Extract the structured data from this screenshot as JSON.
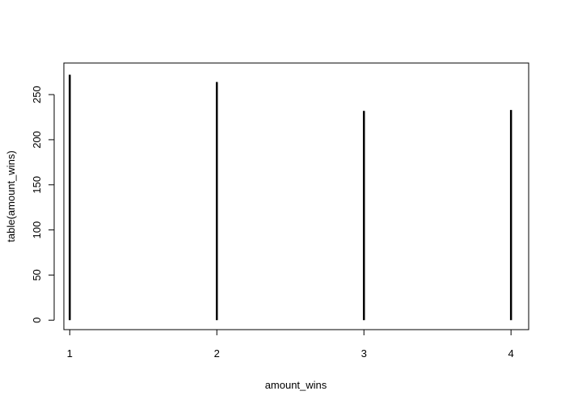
{
  "chart_data": {
    "type": "bar",
    "style": "histogram-lines",
    "categories": [
      "1",
      "2",
      "3",
      "4"
    ],
    "x": [
      1,
      2,
      3,
      4
    ],
    "values": [
      272,
      264,
      232,
      233
    ],
    "title": "",
    "xlabel": "amount_wins",
    "ylabel": "table(amount_wins)",
    "xlim": [
      0.96,
      4.12
    ],
    "ylim": [
      -10.5,
      285
    ],
    "x_ticks": [
      1,
      2,
      3,
      4
    ],
    "y_ticks": [
      0,
      50,
      100,
      150,
      200,
      250
    ],
    "grid": false,
    "legend": "none",
    "bar_color": "#000000",
    "frame_color": "#000000"
  }
}
